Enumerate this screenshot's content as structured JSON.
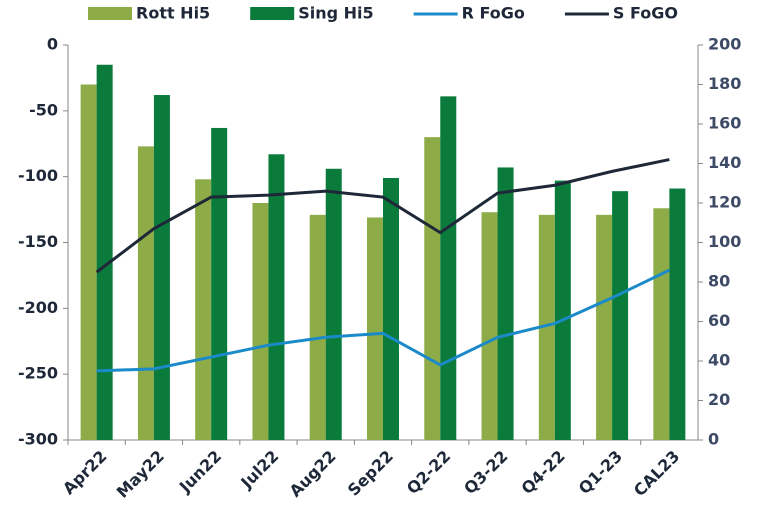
{
  "chart_data": {
    "type": "bar-line",
    "categories": [
      "Apr22",
      "May22",
      "Jun22",
      "Jul22",
      "Aug22",
      "Sep22",
      "Q2-22",
      "Q3-22",
      "Q4-22",
      "Q1-23",
      "CAL23"
    ],
    "series": [
      {
        "name": "Rott Hi5",
        "type": "bar",
        "axis": "y",
        "color": "#8dab46",
        "values": [
          -30,
          -77,
          -102,
          -120,
          -129,
          -131,
          -70,
          -127,
          -129,
          -129,
          -124
        ]
      },
      {
        "name": "Sing Hi5",
        "type": "bar",
        "axis": "y",
        "color": "#0a7b3b",
        "values": [
          -15,
          -38,
          -63,
          -83,
          -94,
          -101,
          -39,
          -93,
          -103,
          -111,
          -109
        ]
      },
      {
        "name": "R FoGo",
        "type": "line",
        "axis": "y2",
        "color": "#1b8ac8",
        "values": [
          35,
          36,
          42,
          48,
          52,
          54,
          38,
          52,
          59,
          72,
          86
        ]
      },
      {
        "name": "S FoGO",
        "type": "line",
        "axis": "y2",
        "color": "#1e2838",
        "values": [
          85,
          107,
          123,
          124,
          126,
          123,
          105,
          125,
          129,
          136,
          142
        ]
      }
    ],
    "ylim": [
      -300,
      0
    ],
    "yticks": [
      -300,
      -250,
      -200,
      -150,
      -100,
      -50,
      0
    ],
    "y2lim": [
      0,
      200
    ],
    "y2ticks": [
      0,
      20,
      40,
      60,
      80,
      100,
      120,
      140,
      160,
      180,
      200
    ]
  }
}
